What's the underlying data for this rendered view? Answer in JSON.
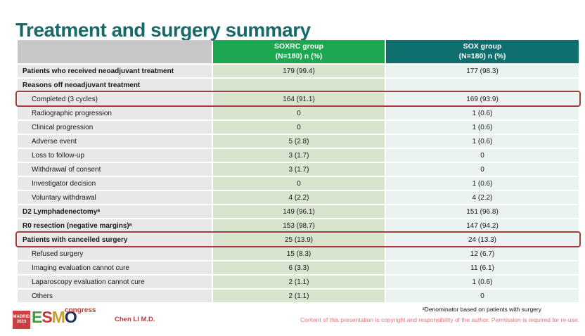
{
  "title": "Treatment and surgery summary",
  "table": {
    "header": {
      "col1": "",
      "col2_line1": "SOXRC group",
      "col2_line2": "(N=180)  n (%)",
      "col3_line1": "SOX group",
      "col3_line2": "(N=180)  n (%)"
    },
    "rows": [
      {
        "label": "Patients who received neoadjuvant treatment",
        "soxrc": "179 (99.4)",
        "sox": "177 (98.3)",
        "bold": true,
        "redbox": false
      },
      {
        "label": "Reasons off neoadjuvant treatment",
        "soxrc": "",
        "sox": "",
        "bold": true,
        "redbox": false
      },
      {
        "label": "Completed (3 cycles)",
        "soxrc": "164 (91.1)",
        "sox": "169 (93.9)",
        "bold": false,
        "redbox": true
      },
      {
        "label": "Radiographic progression",
        "soxrc": "0",
        "sox": "1 (0.6)",
        "bold": false,
        "redbox": false
      },
      {
        "label": "Clinical progression",
        "soxrc": "0",
        "sox": "1 (0.6)",
        "bold": false,
        "redbox": false
      },
      {
        "label": "Adverse event",
        "soxrc": "5 (2.8)",
        "sox": "1 (0.6)",
        "bold": false,
        "redbox": false
      },
      {
        "label": "Loss to follow-up",
        "soxrc": "3 (1.7)",
        "sox": "0",
        "bold": false,
        "redbox": false
      },
      {
        "label": "Withdrawal of consent",
        "soxrc": "3 (1.7)",
        "sox": "0",
        "bold": false,
        "redbox": false
      },
      {
        "label": "Investigator decision",
        "soxrc": "0",
        "sox": "1 (0.6)",
        "bold": false,
        "redbox": false
      },
      {
        "label": "Voluntary withdrawal",
        "soxrc": "4 (2.2)",
        "sox": "4 (2.2)",
        "bold": false,
        "redbox": false
      },
      {
        "label": "D2 Lymphadenectomyᵃ",
        "soxrc": "149 (96.1)",
        "sox": "151 (96.8)",
        "bold": true,
        "redbox": false
      },
      {
        "label": "R0 resection (negative margins)ᵃ",
        "soxrc": "153 (98.7)",
        "sox": "147 (94.2)",
        "bold": true,
        "redbox": false
      },
      {
        "label": "Patients with cancelled surgery",
        "soxrc": "25 (13.9)",
        "sox": "24 (13.3)",
        "bold": true,
        "redbox": true
      },
      {
        "label": "Refused surgery",
        "soxrc": "15 (8.3)",
        "sox": "12 (6.7)",
        "bold": false,
        "redbox": false
      },
      {
        "label": "Imaging evaluation cannot cure",
        "soxrc": "6 (3.3)",
        "sox": "11 (6.1)",
        "bold": false,
        "redbox": false
      },
      {
        "label": "Laparoscopy evaluation cannot cure",
        "soxrc": "2 (1.1)",
        "sox": "1 (0.6)",
        "bold": false,
        "redbox": false
      },
      {
        "label": "Others",
        "soxrc": "2 (1.1)",
        "sox": "0",
        "bold": false,
        "redbox": false
      }
    ]
  },
  "footnote": "ᵃDenominator based on patients with surgery",
  "footer": {
    "madrid": "MADRID",
    "year": "2023",
    "esmo_letters": [
      "E",
      "S",
      "M",
      "O"
    ],
    "congress": "congress",
    "author": "Chen LI M.D.",
    "copyright": "Content of this presentation is copyright and responsibility of the author. Permission is required for re-use."
  },
  "colors": {
    "title_teal": "#17696a",
    "header_green": "#1ca750",
    "header_teal": "#0f6f6f",
    "header_gray": "#c7c7c7",
    "label_cell": "#e8e8e8",
    "soxrc_cell": "#d7e5ce",
    "sox_cell": "#eaf3f2",
    "highlight_red": "#a93a38",
    "copyright_pink": "#e4737e",
    "author_red": "#b5413c"
  }
}
